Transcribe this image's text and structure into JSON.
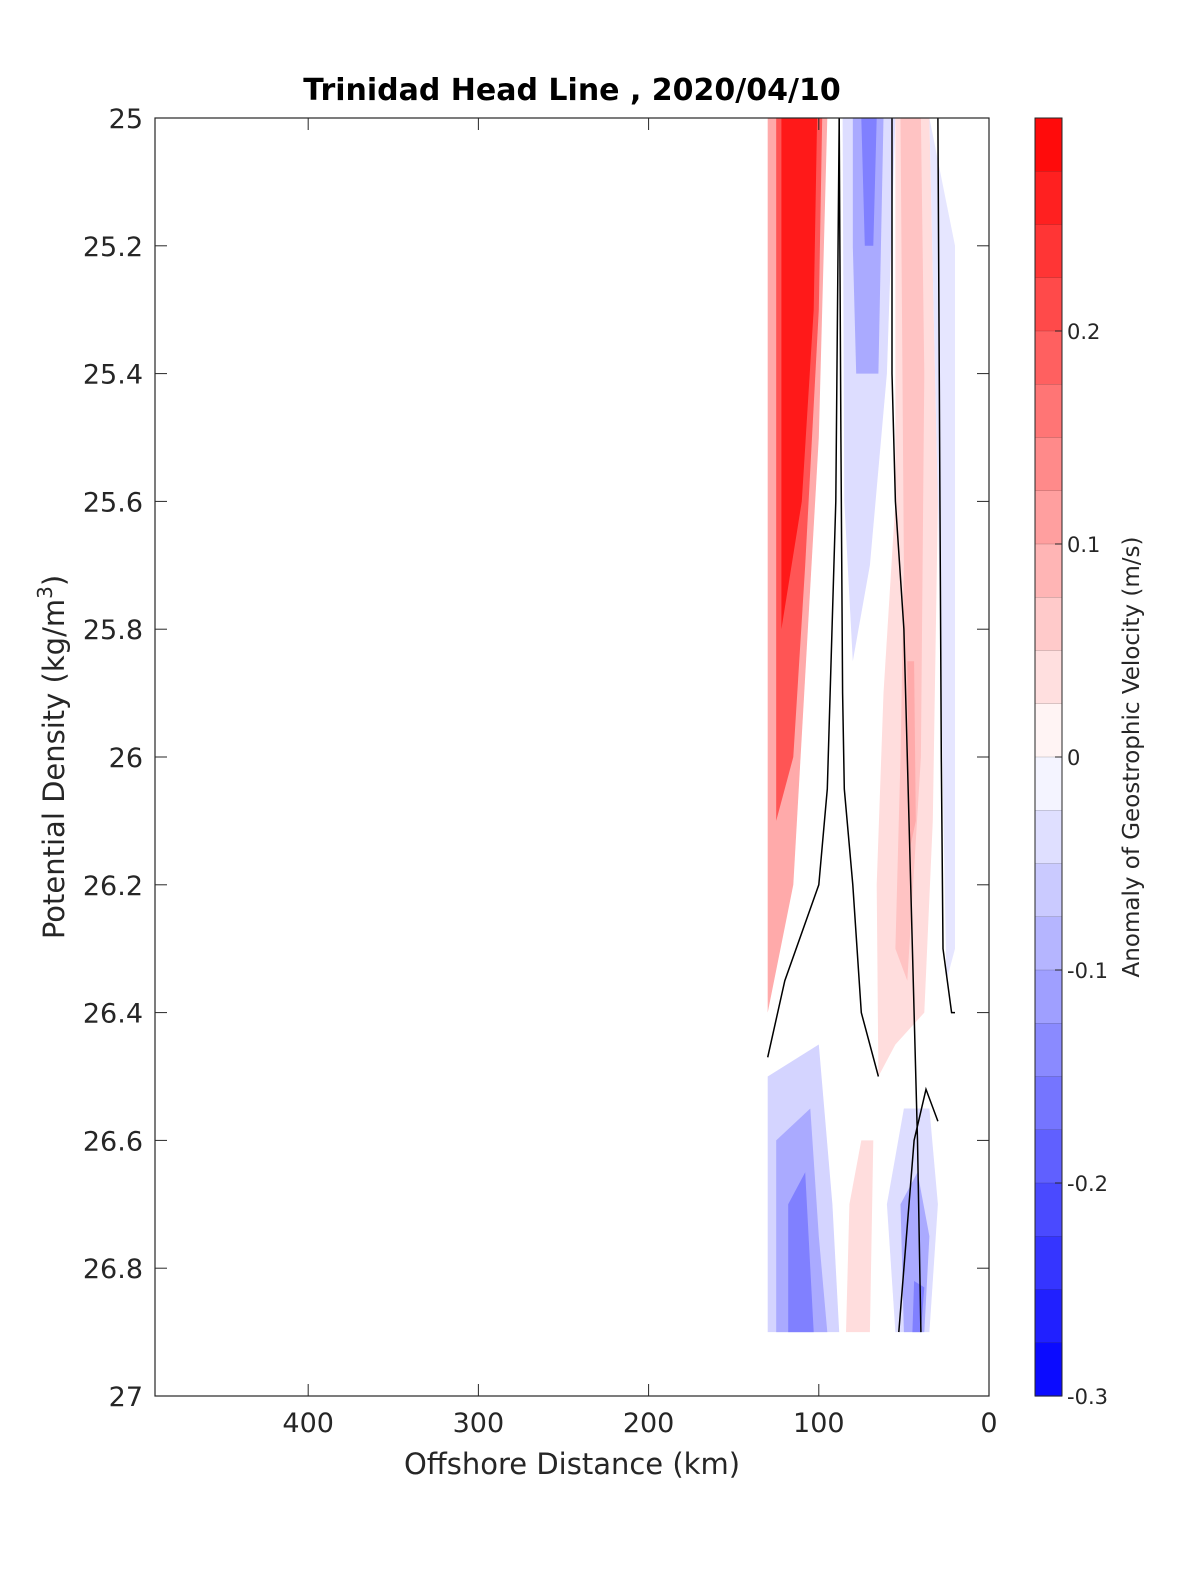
{
  "chart_data": {
    "type": "contour",
    "title": "Trinidad Head Line , 2020/04/10",
    "xlabel": "Offshore Distance (km)",
    "ylabel_prefix": "Potential Density (kg/m",
    "ylabel_exponent": "3",
    "ylabel_suffix": ")",
    "xlim": [
      490,
      0
    ],
    "ylim": [
      25,
      27
    ],
    "x_reversed": true,
    "y_reversed": true,
    "x_ticks": [
      400,
      300,
      200,
      100,
      0
    ],
    "y_ticks": [
      25,
      25.2,
      25.4,
      25.6,
      25.8,
      26,
      26.2,
      26.4,
      26.6,
      26.8,
      27
    ],
    "y_tick_labels": [
      "25",
      "25.2",
      "25.4",
      "25.6",
      "25.8",
      "26",
      "26.2",
      "26.4",
      "26.6",
      "26.8",
      "27"
    ],
    "grid": false,
    "colorbar": {
      "label": "Anomaly of Geostrophic Velocity (m/s)",
      "range": [
        -0.3,
        0.3
      ],
      "levels": 24,
      "ticks": [
        0.2,
        0.1,
        0,
        -0.1,
        -0.2,
        -0.3
      ],
      "tick_labels": [
        "0.2",
        "0.1",
        "0",
        "-0.1",
        "-0.2",
        "-0.3"
      ],
      "negative_color": "#0000ff",
      "positive_color": "#ff0000"
    },
    "data_extent": {
      "x_range": [
        130,
        20
      ],
      "y_range": [
        25,
        26.9
      ]
    },
    "regions": [
      {
        "polygon": [
          [
            130,
            25
          ],
          [
            95,
            25
          ],
          [
            100,
            25.5
          ],
          [
            115,
            26.2
          ],
          [
            130,
            26.4
          ]
        ],
        "value": 0.1
      },
      {
        "polygon": [
          [
            125,
            25
          ],
          [
            98,
            25
          ],
          [
            100,
            25.3
          ],
          [
            108,
            25.7
          ],
          [
            115,
            26.0
          ],
          [
            125,
            26.1
          ]
        ],
        "value": 0.2
      },
      {
        "polygon": [
          [
            122,
            25
          ],
          [
            101,
            25
          ],
          [
            103,
            25.3
          ],
          [
            110,
            25.6
          ],
          [
            122,
            25.8
          ]
        ],
        "value": 0.27
      },
      {
        "polygon": [
          [
            86,
            25
          ],
          [
            55,
            25
          ],
          [
            60,
            25.4
          ],
          [
            70,
            25.7
          ],
          [
            80,
            25.85
          ],
          [
            85,
            25.6
          ]
        ],
        "value": -0.04
      },
      {
        "polygon": [
          [
            80,
            25
          ],
          [
            62,
            25
          ],
          [
            65,
            25.4
          ],
          [
            78,
            25.4
          ],
          [
            80,
            25.2
          ]
        ],
        "value": -0.1
      },
      {
        "polygon": [
          [
            75,
            25
          ],
          [
            66,
            25
          ],
          [
            68,
            25.2
          ],
          [
            73,
            25.2
          ]
        ],
        "value": -0.15
      },
      {
        "polygon": [
          [
            55,
            25
          ],
          [
            35,
            25
          ],
          [
            30,
            25.6
          ],
          [
            33,
            26.1
          ],
          [
            38,
            26.4
          ],
          [
            55,
            26.45
          ],
          [
            65,
            26.5
          ],
          [
            66,
            26.2
          ],
          [
            62,
            25.9
          ],
          [
            55,
            25.6
          ]
        ],
        "value": 0.04
      },
      {
        "polygon": [
          [
            52,
            25
          ],
          [
            40,
            25
          ],
          [
            38,
            25.4
          ],
          [
            40,
            26.0
          ],
          [
            48,
            26.35
          ],
          [
            55,
            26.3
          ],
          [
            52,
            26.0
          ],
          [
            50,
            25.7
          ]
        ],
        "value": 0.07
      },
      {
        "polygon": [
          [
            48,
            25.85
          ],
          [
            44,
            25.85
          ],
          [
            43,
            26.1
          ],
          [
            47,
            26.15
          ]
        ],
        "value": 0.1
      },
      {
        "polygon": [
          [
            35,
            25
          ],
          [
            20,
            25.2
          ],
          [
            20,
            26.3
          ],
          [
            25,
            26.35
          ],
          [
            30,
            25.6
          ]
        ],
        "value": -0.03
      },
      {
        "polygon": [
          [
            130,
            26.5
          ],
          [
            100,
            26.45
          ],
          [
            92,
            26.7
          ],
          [
            88,
            26.9
          ],
          [
            130,
            26.9
          ]
        ],
        "value": -0.05
      },
      {
        "polygon": [
          [
            125,
            26.6
          ],
          [
            105,
            26.55
          ],
          [
            100,
            26.75
          ],
          [
            95,
            26.9
          ],
          [
            125,
            26.9
          ]
        ],
        "value": -0.1
      },
      {
        "polygon": [
          [
            118,
            26.7
          ],
          [
            108,
            26.65
          ],
          [
            105,
            26.8
          ],
          [
            103,
            26.9
          ],
          [
            118,
            26.9
          ]
        ],
        "value": -0.15
      },
      {
        "polygon": [
          [
            84,
            26.9
          ],
          [
            70,
            26.9
          ],
          [
            68,
            26.6
          ],
          [
            75,
            26.6
          ],
          [
            82,
            26.7
          ]
        ],
        "value": 0.04
      },
      {
        "polygon": [
          [
            55,
            26.9
          ],
          [
            35,
            26.9
          ],
          [
            30,
            26.7
          ],
          [
            35,
            26.55
          ],
          [
            50,
            26.55
          ],
          [
            60,
            26.7
          ]
        ],
        "value": -0.04
      },
      {
        "polygon": [
          [
            50,
            26.9
          ],
          [
            38,
            26.9
          ],
          [
            35,
            26.75
          ],
          [
            42,
            26.65
          ],
          [
            52,
            26.7
          ]
        ],
        "value": -0.1
      },
      {
        "polygon": [
          [
            45,
            26.9
          ],
          [
            40,
            26.9
          ],
          [
            38,
            26.83
          ],
          [
            44,
            26.82
          ]
        ],
        "value": -0.15
      }
    ],
    "zero_contours": [
      [
        [
          88,
          25
        ],
        [
          87,
          25.5
        ],
        [
          86,
          25.9
        ],
        [
          85,
          26.05
        ],
        [
          80,
          26.2
        ],
        [
          75,
          26.4
        ],
        [
          65,
          26.5
        ]
      ],
      [
        [
          57,
          25
        ],
        [
          57,
          25.4
        ],
        [
          55,
          25.6
        ],
        [
          50,
          25.8
        ],
        [
          47,
          26.1
        ],
        [
          44,
          26.4
        ],
        [
          42,
          26.6
        ],
        [
          40,
          26.9
        ]
      ],
      [
        [
          30,
          25
        ],
        [
          29,
          25.5
        ],
        [
          28,
          26.0
        ],
        [
          27,
          26.3
        ],
        [
          22,
          26.4
        ],
        [
          20,
          26.4
        ]
      ],
      [
        [
          130,
          26.47
        ],
        [
          120,
          26.35
        ],
        [
          100,
          26.2
        ],
        [
          95,
          26.05
        ],
        [
          90,
          25.6
        ],
        [
          88,
          25.0
        ]
      ],
      [
        [
          30,
          26.57
        ],
        [
          37,
          26.52
        ],
        [
          44,
          26.6
        ],
        [
          50,
          26.8
        ],
        [
          53,
          26.9
        ]
      ]
    ]
  }
}
